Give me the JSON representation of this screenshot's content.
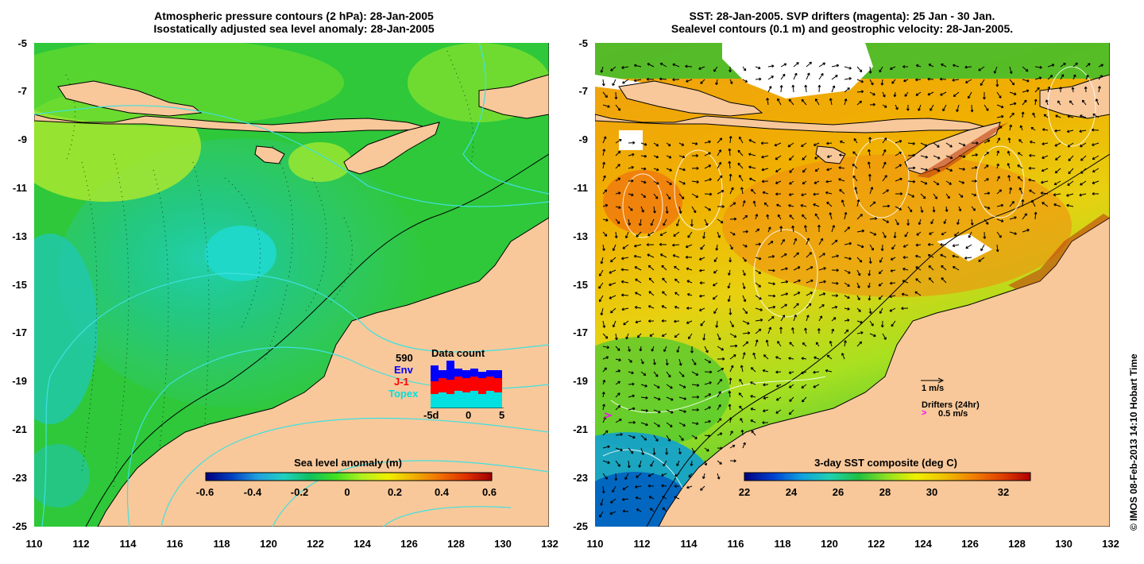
{
  "left_panel": {
    "title_line1": "Atmospheric pressure contours (2 hPa): 28-Jan-2005",
    "title_line2": "Isostatically adjusted sea level anomaly: 28-Jan-2005",
    "colorbar": {
      "title": "Sea level anomaly (m)",
      "labels": [
        "-0.6",
        "-0.4",
        "-0.2",
        "0",
        "0.2",
        "0.4",
        "0.6"
      ],
      "colors": [
        "#00007f",
        "#0040c0",
        "#20a0e0",
        "#20d0c0",
        "#10c060",
        "#40e020",
        "#b0f020",
        "#f0f000",
        "#f0b000",
        "#f07000",
        "#e03000",
        "#a00000"
      ]
    },
    "data_count": {
      "title": "Data count",
      "total": "590",
      "sources": [
        "Env",
        "J-1",
        "Topex"
      ],
      "source_colors": [
        "#0000ff",
        "#ff0000",
        "#00e0e0"
      ],
      "x_labels": [
        "-5d",
        "0",
        "5"
      ]
    }
  },
  "right_panel": {
    "title_line1": "SST: 28-Jan-2005. SVP drifters (magenta): 25 Jan - 30 Jan.",
    "title_line2": "Sealevel contours (0.1 m) and geostrophic velocity: 28-Jan-2005.",
    "colorbar": {
      "title": "3-day SST composite (deg C)",
      "labels": [
        "22",
        "24",
        "26",
        "28",
        "30",
        "32"
      ],
      "colors": [
        "#00007f",
        "#0040d0",
        "#10a0e0",
        "#20d0b0",
        "#20c040",
        "#90e020",
        "#f0f000",
        "#f0c000",
        "#f08000",
        "#e04000",
        "#b00000"
      ]
    },
    "velocity_legend": "1 m/s",
    "drifters_legend": "Drifters (24hr)",
    "drifters_speed": "0.5 m/s"
  },
  "axes": {
    "y_labels": [
      "-5",
      "-7",
      "-9",
      "-11",
      "-13",
      "-15",
      "-17",
      "-19",
      "-21",
      "-23",
      "-25"
    ],
    "x_labels": [
      "110",
      "112",
      "114",
      "116",
      "118",
      "120",
      "122",
      "124",
      "126",
      "128",
      "130",
      "132"
    ]
  },
  "colors": {
    "land": "#f8c89a",
    "ocean_green": "#2ec83a",
    "coast": "#000000",
    "pressure_contour": "#40e0e0"
  },
  "copyright": "© IMOS 08-Feb-2013 14:10 Hobart Time"
}
